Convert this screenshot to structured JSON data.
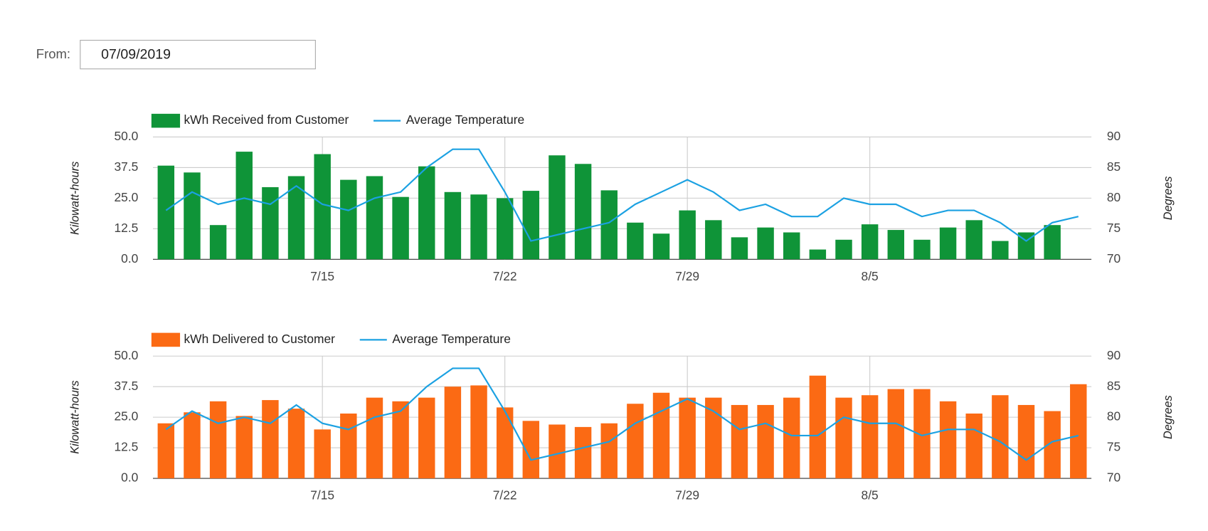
{
  "from_label": "From:",
  "from_value": "07/09/2019",
  "chart_data": [
    {
      "type": "bar",
      "categories": [
        null,
        null,
        null,
        null,
        null,
        null,
        "7/15",
        null,
        null,
        null,
        null,
        null,
        null,
        "7/22",
        null,
        null,
        null,
        null,
        null,
        null,
        "7/29",
        null,
        null,
        null,
        null,
        null,
        null,
        "8/5",
        null,
        null,
        null,
        null,
        null,
        null,
        null,
        null
      ],
      "series": [
        {
          "name": "kWh Received from Customer",
          "color": "#0f9438",
          "values": [
            38.3,
            35.5,
            14,
            44,
            29.5,
            34,
            43,
            32.5,
            34,
            25.5,
            38,
            27.5,
            26.5,
            25,
            28,
            42.5,
            39,
            28.2,
            15,
            10.5,
            20,
            16,
            9,
            13,
            11,
            4,
            8,
            14.3,
            12,
            8,
            13,
            16,
            7.5,
            11,
            14,
            null
          ]
        },
        {
          "name": "Average Temperature",
          "type": "line",
          "axis": "y2",
          "color": "#1ba1e2",
          "values": [
            78,
            81,
            79,
            80,
            79,
            82,
            79,
            78,
            80,
            81,
            85,
            88,
            88,
            81,
            73,
            74,
            75,
            76,
            79,
            81,
            83,
            81,
            78,
            79,
            77,
            77,
            80,
            79,
            79,
            77,
            78,
            78,
            76,
            73,
            76,
            77
          ]
        }
      ],
      "ylabel": "Kilowatt-hours",
      "y2label": "Degrees",
      "ylim": [
        0,
        50
      ],
      "yticks": [
        {
          "value": 0,
          "label": "0.0"
        },
        12.5,
        {
          "value": 25,
          "label": "25.0"
        },
        37.5,
        {
          "value": 50,
          "label": "50.0"
        }
      ],
      "y2lim": [
        70,
        90
      ],
      "y2ticks": [
        70,
        75,
        80,
        85,
        90
      ],
      "grid": true,
      "legend": "top-left"
    },
    {
      "type": "bar",
      "categories": [
        null,
        null,
        null,
        null,
        null,
        null,
        "7/15",
        null,
        null,
        null,
        null,
        null,
        null,
        "7/22",
        null,
        null,
        null,
        null,
        null,
        null,
        "7/29",
        null,
        null,
        null,
        null,
        null,
        null,
        "8/5",
        null,
        null,
        null,
        null,
        null,
        null,
        null,
        null
      ],
      "series": [
        {
          "name": "kWh Delivered to Customer",
          "color": "#fb6a14",
          "values": [
            22.5,
            27,
            31.5,
            25.5,
            32,
            28.5,
            20,
            26.5,
            33,
            31.5,
            33,
            37.5,
            38,
            29,
            23.5,
            22,
            21,
            22.5,
            30.5,
            35,
            33,
            33,
            30,
            30,
            33,
            42,
            33,
            34,
            36.5,
            36.5,
            31.5,
            26.5,
            34,
            30,
            27.5,
            38.5
          ]
        },
        {
          "name": "Average Temperature",
          "type": "line",
          "axis": "y2",
          "color": "#1ba1e2",
          "values": [
            78,
            81,
            79,
            80,
            79,
            82,
            79,
            78,
            80,
            81,
            85,
            88,
            88,
            81,
            73,
            74,
            75,
            76,
            79,
            81,
            83,
            81,
            78,
            79,
            77,
            77,
            80,
            79,
            79,
            77,
            78,
            78,
            76,
            73,
            76,
            77
          ]
        }
      ],
      "ylabel": "Kilowatt-hours",
      "y2label": "Degrees",
      "ylim": [
        0,
        50
      ],
      "yticks": [
        {
          "value": 0,
          "label": "0.0"
        },
        12.5,
        {
          "value": 25,
          "label": "25.0"
        },
        37.5,
        {
          "value": 50,
          "label": "50.0"
        }
      ],
      "y2lim": [
        70,
        90
      ],
      "y2ticks": [
        70,
        75,
        80,
        85,
        90
      ],
      "grid": true,
      "legend": "top-left"
    }
  ]
}
